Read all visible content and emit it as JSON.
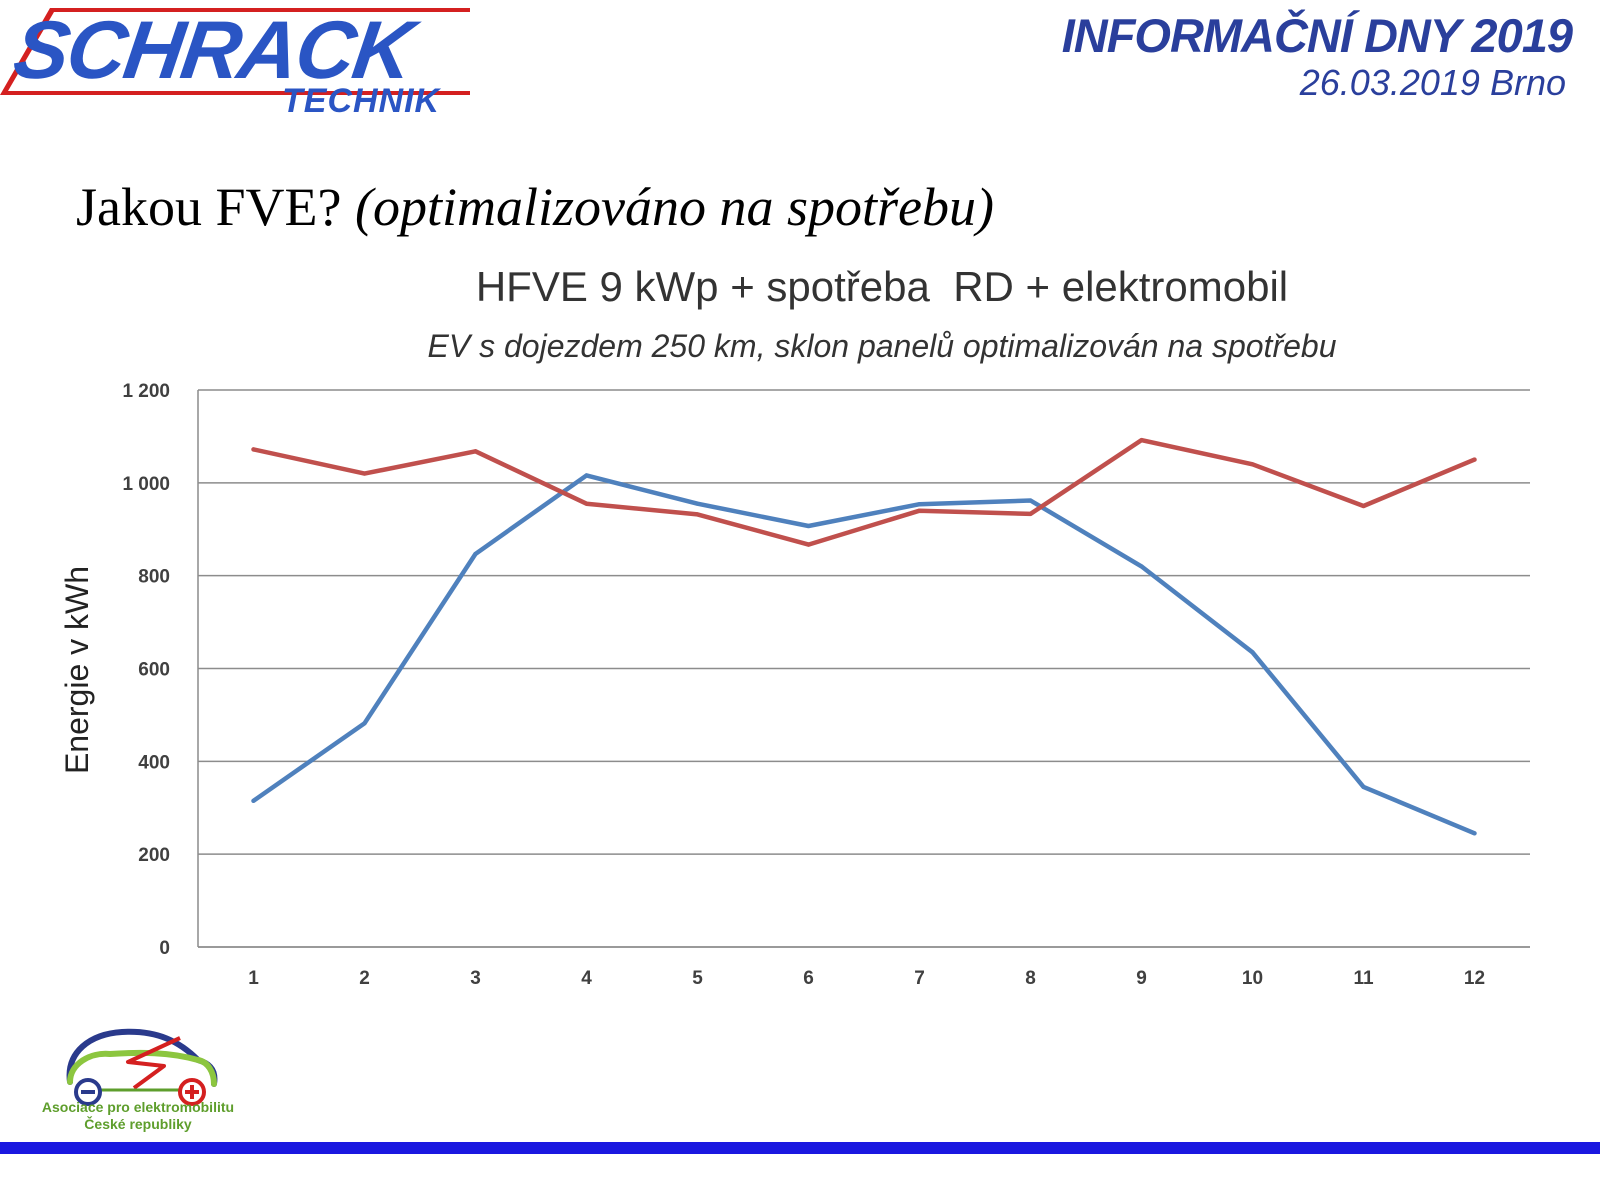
{
  "header": {
    "logo_main": "SCHRACK",
    "logo_sub": "TECHNIK",
    "event_title": "INFORMAČNÍ DNY 2019",
    "event_date": "26.03.2019 Brno",
    "colors": {
      "logo_blue": "#2a55c4",
      "logo_red": "#d42020",
      "event_blue": "#2a3f9c"
    }
  },
  "slide": {
    "heading_plain": "Jakou FVE?",
    "heading_italic": "(optimalizováno na spotřebu)"
  },
  "chart_data": {
    "type": "line",
    "title": "HFVE 9 kWp + spotřeba  RD + elektromobil",
    "subtitle": "EV s dojezdem 250 km, sklon panelů optimalizován na spotřebu",
    "xlabel": "",
    "ylabel": "Energie v kWh",
    "categories": [
      "1",
      "2",
      "3",
      "4",
      "5",
      "6",
      "7",
      "8",
      "9",
      "10",
      "11",
      "12"
    ],
    "y_ticks": [
      "0",
      "200",
      "400",
      "600",
      "800",
      "1 000",
      "1 200"
    ],
    "ylim": [
      0,
      1200
    ],
    "grid": true,
    "legend": "none",
    "series": [
      {
        "color": "#4f81bd",
        "values": [
          315,
          482,
          847,
          1016,
          955,
          907,
          954,
          962,
          820,
          635,
          345,
          245
        ]
      },
      {
        "color": "#c0504d",
        "values": [
          1072,
          1020,
          1068,
          955,
          932,
          867,
          940,
          933,
          1092,
          1040,
          950,
          1050
        ]
      }
    ]
  },
  "footer": {
    "org_line1": "Asociace pro elektromobilitu",
    "org_line2": "České republiky",
    "bar_color": "#1a18e0"
  }
}
